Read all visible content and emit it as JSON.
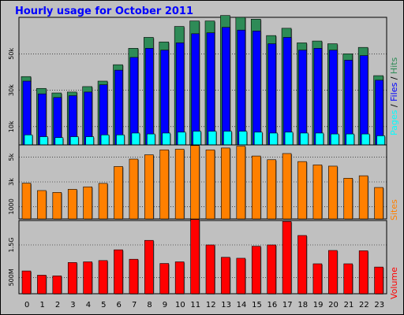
{
  "title": "Hourly usage for October 2011",
  "colors": {
    "frame_bg": "#c0c0c0",
    "panel_bg": "#c0c0c0",
    "title": "#0000ff",
    "hits": "#2e8b57",
    "files": "#0000ff",
    "pages": "#00ffff",
    "sites": "#ff8000",
    "volume": "#ff0000"
  },
  "chart_data": [
    {
      "type": "bar",
      "panel": "top",
      "categories": [
        "0",
        "1",
        "2",
        "3",
        "4",
        "5",
        "6",
        "7",
        "8",
        "9",
        "10",
        "11",
        "12",
        "13",
        "14",
        "15",
        "16",
        "17",
        "18",
        "19",
        "20",
        "21",
        "22",
        "23"
      ],
      "ylabel_parts": [
        "Pages",
        " / ",
        "Files",
        " / ",
        "Hits"
      ],
      "ytick_labels": [
        "10k",
        "30k",
        "50k"
      ],
      "ytick_values": [
        10000,
        30000,
        50000
      ],
      "ylim": [
        0,
        70000
      ],
      "series": [
        {
          "name": "Hits",
          "values": [
            37500,
            31000,
            28500,
            29000,
            32000,
            35000,
            44000,
            53000,
            59000,
            56500,
            65000,
            68000,
            68000,
            71000,
            70000,
            69000,
            60000,
            64000,
            56000,
            57000,
            55500,
            50000,
            53500,
            38000
          ]
        },
        {
          "name": "Files",
          "values": [
            35000,
            28000,
            26000,
            27000,
            29000,
            33000,
            41000,
            48000,
            53000,
            52000,
            56000,
            61000,
            61500,
            64500,
            63000,
            62500,
            55500,
            59000,
            52000,
            53000,
            52000,
            46500,
            49000,
            35500
          ]
        },
        {
          "name": "Pages",
          "values": [
            5500,
            4500,
            4000,
            4500,
            4500,
            5500,
            5500,
            6500,
            6000,
            6500,
            7000,
            7500,
            7500,
            7500,
            7500,
            7000,
            6500,
            7000,
            6500,
            6500,
            6000,
            6000,
            6000,
            5000
          ]
        }
      ]
    },
    {
      "type": "bar",
      "panel": "middle",
      "categories": [
        "0",
        "1",
        "2",
        "3",
        "4",
        "5",
        "6",
        "7",
        "8",
        "9",
        "10",
        "11",
        "12",
        "13",
        "14",
        "15",
        "16",
        "17",
        "18",
        "19",
        "20",
        "21",
        "22",
        "23"
      ],
      "ylabel": "Sites",
      "ytick_labels": [
        "1000",
        "3k",
        "5k"
      ],
      "ytick_values": [
        1000,
        3000,
        5000
      ],
      "ylim": [
        0,
        6000
      ],
      "series": [
        {
          "name": "Sites",
          "values": [
            2900,
            2300,
            2150,
            2400,
            2600,
            2880,
            4250,
            4850,
            5200,
            5600,
            5650,
            5950,
            5600,
            5750,
            5900,
            5100,
            4800,
            5300,
            4650,
            4380,
            4280,
            3300,
            3500,
            2550
          ]
        }
      ]
    },
    {
      "type": "bar",
      "panel": "bottom",
      "categories": [
        "0",
        "1",
        "2",
        "3",
        "4",
        "5",
        "6",
        "7",
        "8",
        "9",
        "10",
        "11",
        "12",
        "13",
        "14",
        "15",
        "16",
        "17",
        "18",
        "19",
        "20",
        "21",
        "22",
        "23"
      ],
      "ylabel": "Volume",
      "ytick_labels": [
        "500M",
        "1.5G"
      ],
      "ytick_values": [
        500,
        1500
      ],
      "ylim": [
        0,
        2250
      ],
      "series": [
        {
          "name": "Volume",
          "values": [
            700,
            570,
            550,
            960,
            980,
            1020,
            1350,
            1060,
            1640,
            930,
            980,
            2280,
            1500,
            1120,
            1090,
            1460,
            1500,
            2220,
            1790,
            920,
            1330,
            920,
            1320,
            820
          ]
        }
      ]
    }
  ]
}
